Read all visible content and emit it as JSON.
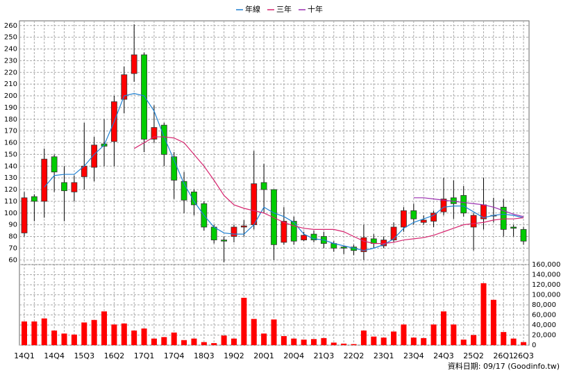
{
  "chart_data": {
    "type": "candlestick",
    "categories": [
      "14Q1",
      null,
      null,
      "14Q4",
      null,
      null,
      "15Q3",
      null,
      null,
      "16Q2",
      null,
      null,
      "17Q1",
      null,
      null,
      "17Q4",
      null,
      null,
      "18Q3",
      null,
      null,
      "19Q2",
      null,
      null,
      "20Q1",
      null,
      null,
      "20Q4",
      null,
      null,
      "21Q3",
      null,
      null,
      "22Q2",
      null,
      null,
      "23Q1",
      null,
      null,
      "23Q4",
      null,
      null,
      "24Q3",
      null,
      null,
      "25Q2",
      null,
      null,
      "26Q1",
      null,
      "26Q3"
    ],
    "open": [
      83,
      114,
      110,
      148,
      126,
      118,
      131,
      139,
      159,
      161,
      197,
      219,
      235,
      163,
      175,
      148,
      127,
      118,
      108,
      88,
      77,
      80,
      88,
      90,
      126,
      120,
      75,
      93,
      77,
      82,
      80,
      74,
      71,
      71,
      67,
      78,
      72,
      77,
      88,
      102,
      92,
      93,
      101,
      113,
      115,
      88,
      95,
      98,
      105,
      88,
      86
    ],
    "high": [
      118,
      116,
      155,
      150,
      140,
      132,
      177,
      165,
      180,
      200,
      225,
      261,
      237,
      192,
      177,
      152,
      135,
      120,
      110,
      90,
      80,
      90,
      94,
      153,
      142,
      120,
      105,
      97,
      84,
      85,
      84,
      76,
      72,
      73,
      90,
      82,
      80,
      92,
      105,
      108,
      98,
      102,
      130,
      128,
      123,
      100,
      130,
      113,
      112,
      90,
      88
    ],
    "low": [
      80,
      93,
      96,
      118,
      93,
      110,
      120,
      127,
      140,
      140,
      185,
      212,
      152,
      160,
      140,
      112,
      100,
      98,
      85,
      74,
      58,
      75,
      80,
      86,
      100,
      60,
      73,
      73,
      76,
      75,
      70,
      67,
      65,
      64,
      60,
      70,
      70,
      75,
      84,
      90,
      90,
      88,
      98,
      95,
      97,
      68,
      86,
      92,
      80,
      80,
      73
    ],
    "close": [
      113,
      110,
      146,
      135,
      119,
      126,
      140,
      158,
      157,
      195,
      218,
      235,
      163,
      173,
      150,
      128,
      111,
      107,
      88,
      77,
      76,
      88,
      89,
      125,
      120,
      73,
      93,
      76,
      81,
      77,
      74,
      70,
      70,
      68,
      79,
      74,
      77,
      88,
      102,
      95,
      94,
      100,
      112,
      108,
      100,
      98,
      107,
      98,
      86,
      87,
      76
    ],
    "up_color": "#ff0000",
    "down_color": "#00cc00",
    "lines": [
      {
        "name": "年線",
        "color": "#1e7fd0",
        "values": [
          null,
          null,
          122,
          132,
          133,
          133,
          140,
          150,
          158,
          178,
          200,
          202,
          200,
          187,
          165,
          145,
          125,
          110,
          98,
          88,
          83,
          82,
          82,
          90,
          105,
          100,
          97,
          92,
          82,
          78,
          77,
          74,
          72,
          70,
          68,
          70,
          73,
          78,
          87,
          92,
          95,
          98,
          105,
          106,
          106,
          101,
          96,
          98,
          99,
          98,
          96
        ]
      },
      {
        "name": "三年",
        "color": "#d6246e",
        "values": [
          null,
          null,
          null,
          null,
          null,
          null,
          null,
          null,
          null,
          null,
          null,
          155,
          160,
          165,
          165,
          164,
          160,
          150,
          140,
          128,
          115,
          107,
          104,
          102,
          100,
          96,
          92,
          89,
          87,
          86,
          86,
          86,
          84,
          80,
          76,
          74,
          74,
          75,
          77,
          78,
          79,
          81,
          84,
          87,
          90,
          91,
          92,
          94,
          95,
          95,
          96
        ]
      },
      {
        "name": "十年",
        "color": "#9b2fb0",
        "values": [
          null,
          null,
          null,
          null,
          null,
          null,
          null,
          null,
          null,
          null,
          null,
          null,
          null,
          null,
          null,
          null,
          null,
          null,
          null,
          null,
          null,
          null,
          null,
          null,
          null,
          null,
          null,
          null,
          null,
          null,
          null,
          null,
          null,
          null,
          null,
          null,
          null,
          null,
          null,
          113,
          113,
          112,
          111,
          110,
          109,
          108,
          107,
          105,
          102,
          99,
          97
        ]
      }
    ],
    "ylim": [
      56,
      264
    ],
    "yticks": [
      60,
      70,
      80,
      90,
      100,
      110,
      120,
      130,
      140,
      150,
      160,
      170,
      180,
      190,
      200,
      210,
      220,
      230,
      240,
      250,
      260
    ],
    "volume": {
      "color": "#ff0000",
      "values": [
        47000,
        47000,
        53000,
        29000,
        23000,
        21000,
        45000,
        50000,
        67000,
        41000,
        43000,
        29000,
        33000,
        13000,
        16000,
        25000,
        10000,
        13000,
        6000,
        4000,
        19000,
        13000,
        94000,
        52000,
        23000,
        51000,
        18000,
        13000,
        11000,
        12000,
        14000,
        5000,
        3000,
        2000,
        29000,
        17000,
        15000,
        27000,
        41000,
        15000,
        14000,
        41000,
        67000,
        41000,
        11000,
        20000,
        123000,
        90000,
        26000,
        13000,
        6000
      ]
    },
    "y2lim": [
      0,
      160000
    ],
    "y2ticks": [
      0,
      {
        "value": 20000,
        "label": "20,000"
      },
      {
        "value": 40000,
        "label": "40,000"
      },
      {
        "value": 60000,
        "label": "60,000"
      },
      {
        "value": 80000,
        "label": "80,000"
      },
      {
        "value": 100000,
        "label": "100,000"
      },
      {
        "value": 120000,
        "label": "120,000"
      },
      {
        "value": 140000,
        "label": "140,000"
      },
      {
        "value": 160000,
        "label": "160,000"
      }
    ],
    "grid": true,
    "note": "資料日期: 09/17  (Goodinfo.tw)"
  }
}
